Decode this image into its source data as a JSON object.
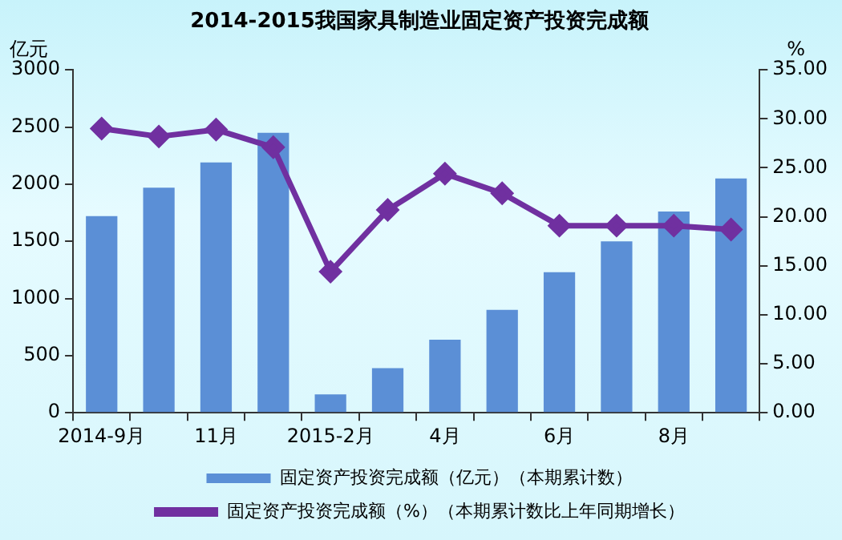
{
  "chart_data": {
    "type": "bar",
    "title": "2014-2015我国家具制造业固定资产投资完成额",
    "ylabel": "亿元",
    "y2label": "%",
    "categories": [
      "2014-9月",
      null,
      "11月",
      null,
      "2015-2月",
      null,
      "4月",
      null,
      "6月",
      null,
      "8月",
      null
    ],
    "series": [
      {
        "name": "固定资产投资完成额（亿元）（本期累计数）",
        "color": "#5b8fd6",
        "values": [
          1720,
          1970,
          2190,
          2450,
          160,
          390,
          640,
          900,
          1230,
          1500,
          1760,
          2050
        ]
      },
      {
        "name": "固定资产投资完成额（%）（本期累计数比上年同期增长）",
        "type": "line",
        "axis": "y2",
        "color": "#7030a0",
        "marker": "diamond",
        "values": [
          29.0,
          28.2,
          28.9,
          27.1,
          14.4,
          20.7,
          24.4,
          22.4,
          19.1,
          19.1,
          19.1,
          18.7
        ]
      }
    ],
    "ylim": [
      0,
      3000
    ],
    "yticks": [
      0,
      500,
      1000,
      1500,
      2000,
      2500,
      3000
    ],
    "y2lim": [
      0,
      35
    ],
    "y2ticks": [
      {
        "value": 0,
        "label": "0.00"
      },
      {
        "value": 5,
        "label": "5.00"
      },
      {
        "value": 10,
        "label": "10.00"
      },
      {
        "value": 15,
        "label": "15.00"
      },
      {
        "value": 20,
        "label": "20.00"
      },
      {
        "value": 25,
        "label": "25.00"
      },
      {
        "value": 30,
        "label": "30.00"
      },
      {
        "value": 35,
        "label": "35.00"
      }
    ],
    "grid": false,
    "legend": "bottom"
  }
}
